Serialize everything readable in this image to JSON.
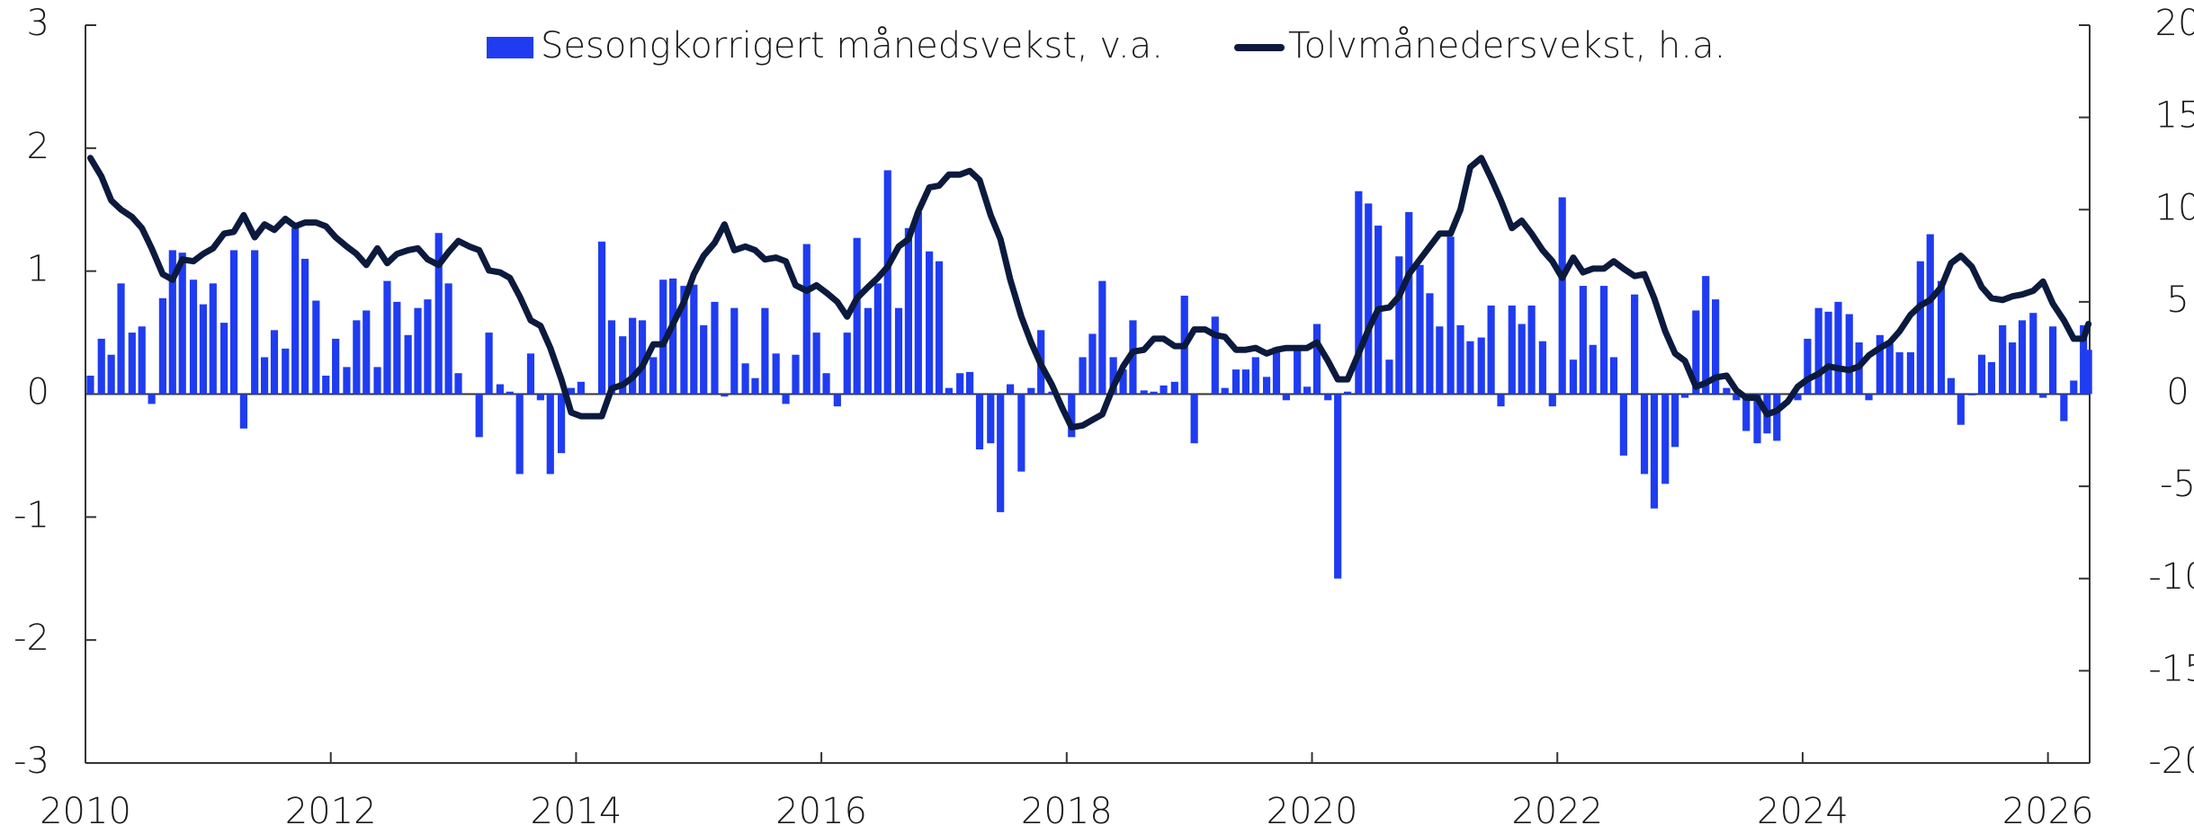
{
  "chart_data": {
    "type": "bar",
    "x": [
      2010.04,
      2010.13,
      2010.21,
      2010.29,
      2010.38,
      2010.46,
      2010.54,
      2010.63,
      2010.71,
      2010.79,
      2010.88,
      2010.96,
      2011.04,
      2011.13,
      2011.21,
      2011.29,
      2011.38,
      2011.46,
      2011.54,
      2011.63,
      2011.71,
      2011.79,
      2011.88,
      2011.96,
      2012.04,
      2012.13,
      2012.21,
      2012.29,
      2012.38,
      2012.46,
      2012.54,
      2012.63,
      2012.71,
      2012.79,
      2012.88,
      2012.96,
      2013.04,
      2013.13,
      2013.21,
      2013.29,
      2013.38,
      2013.46,
      2013.54,
      2013.63,
      2013.71,
      2013.79,
      2013.88,
      2013.96,
      2014.04,
      2014.13,
      2014.21,
      2014.29,
      2014.38,
      2014.46,
      2014.54,
      2014.63,
      2014.71,
      2014.79,
      2014.88,
      2014.96,
      2015.04,
      2015.13,
      2015.21,
      2015.29,
      2015.38,
      2015.46,
      2015.54,
      2015.63,
      2015.71,
      2015.79,
      2015.88,
      2015.96,
      2016.04,
      2016.13,
      2016.21,
      2016.29,
      2016.38,
      2016.46,
      2016.54,
      2016.63,
      2016.71,
      2016.79,
      2016.88,
      2016.96,
      2017.04,
      2017.13,
      2017.21,
      2017.29,
      2017.38,
      2017.46,
      2017.54,
      2017.63,
      2017.71,
      2017.79,
      2017.88,
      2017.96,
      2018.04,
      2018.13,
      2018.21,
      2018.29,
      2018.38,
      2018.46,
      2018.54,
      2018.63,
      2018.71,
      2018.79,
      2018.88,
      2018.96,
      2019.04,
      2019.13,
      2019.21,
      2019.29,
      2019.38,
      2019.46,
      2019.54,
      2019.63,
      2019.71,
      2019.79,
      2019.88,
      2019.96,
      2020.04,
      2020.13,
      2020.21,
      2020.29,
      2020.38,
      2020.46,
      2020.54,
      2020.63,
      2020.71,
      2020.79,
      2020.88,
      2020.96,
      2021.04,
      2021.13,
      2021.21,
      2021.29,
      2021.38,
      2021.46,
      2021.54,
      2021.63,
      2021.71,
      2021.79,
      2021.88,
      2021.96,
      2022.04,
      2022.13,
      2022.21,
      2022.29,
      2022.38,
      2022.46,
      2022.54,
      2022.63,
      2022.71,
      2022.79,
      2022.88,
      2022.96,
      2023.04,
      2023.13,
      2023.21,
      2023.29,
      2023.38,
      2023.46,
      2023.54,
      2023.63,
      2023.71,
      2023.79,
      2023.88,
      2023.96,
      2024.04,
      2024.13,
      2024.21,
      2024.29,
      2024.38,
      2024.46,
      2024.54,
      2024.63,
      2024.71,
      2024.79,
      2024.88,
      2024.96,
      2025.04,
      2025.13,
      2025.21,
      2025.29,
      2025.38,
      2025.46,
      2025.54,
      2025.63,
      2025.71,
      2025.79,
      2025.88,
      2025.96,
      2026.04,
      2026.13,
      2026.21,
      2026.29,
      2026.33
    ],
    "series": [
      {
        "name": "Sesongkorrigert månedsvekst, v.a.",
        "type": "bar",
        "axis": "y",
        "color": "#1f3cf0",
        "values": [
          0.15,
          0.45,
          0.32,
          0.9,
          0.5,
          0.55,
          -0.08,
          0.78,
          1.17,
          1.15,
          0.93,
          0.73,
          0.9,
          0.58,
          1.17,
          -0.28,
          1.17,
          0.3,
          0.52,
          0.37,
          1.35,
          1.1,
          0.76,
          0.15,
          0.45,
          0.22,
          0.6,
          0.68,
          0.22,
          0.92,
          0.75,
          0.48,
          0.7,
          0.77,
          1.31,
          0.9,
          0.17,
          0.0,
          -0.35,
          0.5,
          0.08,
          0.02,
          -0.65,
          0.33,
          -0.05,
          -0.65,
          -0.48,
          0.05,
          0.1,
          0.0,
          1.24,
          0.6,
          0.47,
          0.62,
          0.6,
          0.3,
          0.93,
          0.94,
          0.88,
          0.89,
          0.56,
          0.75,
          -0.02,
          0.7,
          0.25,
          0.13,
          0.7,
          0.33,
          -0.08,
          0.32,
          1.22,
          0.5,
          0.17,
          -0.1,
          0.5,
          1.27,
          0.7,
          0.9,
          1.82,
          0.7,
          1.35,
          1.48,
          1.16,
          1.08,
          0.05,
          0.17,
          0.18,
          -0.45,
          -0.4,
          -0.96,
          0.08,
          -0.63,
          0.05,
          0.52,
          0.02,
          0.0,
          -0.35,
          0.3,
          0.49,
          0.92,
          0.3,
          0.2,
          0.6,
          0.03,
          0.02,
          0.07,
          0.1,
          0.8,
          -0.4,
          0.0,
          0.63,
          0.05,
          0.2,
          0.2,
          0.3,
          0.14,
          0.38,
          -0.05,
          0.38,
          0.06,
          0.57,
          -0.05,
          -1.5,
          0.02,
          1.65,
          1.55,
          1.37,
          0.28,
          1.12,
          1.48,
          1.05,
          0.82,
          0.55,
          1.28,
          0.56,
          0.43,
          0.46,
          0.72,
          -0.1,
          0.72,
          0.57,
          0.72,
          0.43,
          -0.1,
          1.6,
          0.28,
          0.88,
          0.4,
          0.88,
          0.3,
          -0.5,
          0.81,
          -0.65,
          -0.93,
          -0.73,
          -0.43,
          -0.03,
          0.68,
          0.96,
          0.77,
          0.05,
          -0.05,
          -0.3,
          -0.4,
          -0.32,
          -0.38,
          0.0,
          -0.05,
          0.45,
          0.7,
          0.67,
          0.75,
          0.65,
          0.42,
          -0.05,
          0.48,
          0.41,
          0.34,
          0.34,
          1.08,
          1.3,
          0.92,
          0.13,
          -0.25,
          -0.01,
          0.32,
          0.26,
          0.56,
          0.42,
          0.6,
          0.66,
          -0.03,
          0.55,
          -0.22,
          0.11,
          0.56,
          0.36
        ]
      },
      {
        "name": "Tolvmånedersvekst, h.a.",
        "type": "line",
        "axis": "y2",
        "color": "#0b1a3d",
        "values": [
          12.8,
          11.8,
          10.5,
          10.0,
          9.6,
          9.0,
          7.9,
          6.5,
          6.2,
          7.3,
          7.2,
          7.6,
          7.9,
          8.7,
          8.8,
          9.7,
          8.5,
          9.2,
          8.9,
          9.5,
          9.1,
          9.3,
          9.3,
          9.1,
          8.5,
          8.0,
          7.6,
          7.0,
          7.9,
          7.1,
          7.6,
          7.8,
          7.9,
          7.3,
          7.0,
          7.7,
          8.3,
          8.0,
          7.8,
          6.7,
          6.6,
          6.3,
          5.3,
          4.0,
          3.7,
          2.5,
          0.8,
          -1.0,
          -1.2,
          -1.2,
          -1.2,
          0.3,
          0.5,
          0.9,
          1.5,
          2.7,
          2.7,
          3.8,
          5.0,
          6.5,
          7.5,
          8.2,
          9.2,
          7.8,
          8.0,
          7.8,
          7.3,
          7.4,
          7.2,
          5.9,
          5.6,
          5.9,
          5.5,
          5.0,
          4.2,
          5.2,
          5.8,
          6.3,
          6.9,
          8.0,
          8.4,
          9.9,
          11.2,
          11.3,
          11.9,
          11.9,
          12.1,
          11.6,
          9.7,
          8.4,
          6.2,
          4.2,
          2.8,
          1.6,
          0.5,
          -0.7,
          -1.8,
          -1.7,
          -1.4,
          -1.1,
          0.4,
          1.5,
          2.3,
          2.4,
          3.0,
          3.0,
          2.6,
          2.6,
          3.5,
          3.5,
          3.2,
          3.1,
          2.4,
          2.4,
          2.5,
          2.2,
          2.4,
          2.5,
          2.5,
          2.5,
          2.8,
          1.8,
          0.8,
          0.8,
          2.2,
          3.5,
          4.6,
          4.7,
          5.3,
          6.5,
          7.3,
          8.0,
          8.7,
          8.7,
          10.0,
          12.3,
          12.8,
          11.7,
          10.5,
          9.0,
          9.4,
          8.7,
          7.8,
          7.2,
          6.3,
          7.4,
          6.6,
          6.8,
          6.8,
          7.2,
          6.8,
          6.4,
          6.5,
          5.2,
          3.4,
          2.2,
          1.8,
          0.4,
          0.6,
          0.9,
          1.0,
          0.2,
          -0.2,
          -0.2,
          -1.1,
          -0.9,
          -0.4,
          0.4,
          0.8,
          1.1,
          1.5,
          1.4,
          1.3,
          1.5,
          2.1,
          2.5,
          2.8,
          3.4,
          4.3,
          4.8,
          5.1,
          5.8,
          7.1,
          7.5,
          6.9,
          5.8,
          5.2,
          5.1,
          5.3,
          5.4,
          5.6,
          6.1,
          4.9,
          4.0,
          3.0,
          3.0,
          3.8
        ]
      }
    ],
    "xlim": [
      2010,
      2026.34
    ],
    "xticks": [
      2010,
      2012,
      2014,
      2016,
      2018,
      2020,
      2022,
      2024,
      2026
    ],
    "ylim": [
      -3,
      3
    ],
    "yticks": [
      -3,
      -2,
      -1,
      0,
      1,
      2,
      3
    ],
    "y2lim": [
      -20,
      20
    ],
    "y2ticks": [
      -20,
      -15,
      -10,
      -5,
      0,
      5,
      10,
      15,
      20
    ],
    "legend": "top"
  }
}
